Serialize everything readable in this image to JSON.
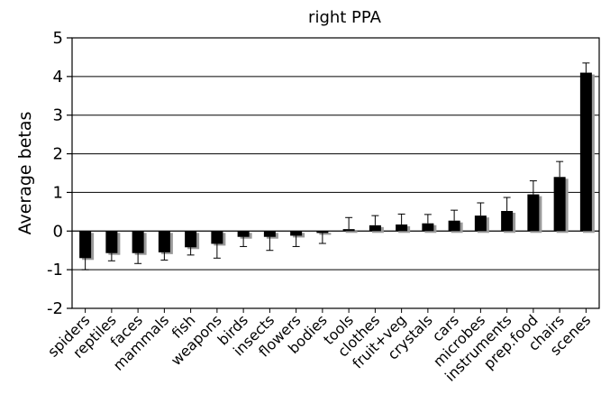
{
  "chart_data": {
    "type": "bar",
    "title": "right PPA",
    "xlabel": "",
    "ylabel": "Average betas",
    "ylim": [
      -2,
      5
    ],
    "yticks": [
      -2,
      -1,
      0,
      1,
      2,
      3,
      4,
      5
    ],
    "grid": true,
    "legend": "none",
    "categories": [
      "spiders",
      "reptiles",
      "faces",
      "mammals",
      "fish",
      "weapons",
      "birds",
      "insects",
      "flowers",
      "bodies",
      "tools",
      "clothes",
      "fruit+veg",
      "crystals",
      "cars",
      "microbes",
      "instruments",
      "prep.food",
      "chairs",
      "scenes"
    ],
    "series": [
      {
        "values": [
          -0.7,
          -0.57,
          -0.57,
          -0.55,
          -0.42,
          -0.33,
          -0.15,
          -0.15,
          -0.12,
          -0.05,
          0.05,
          0.15,
          0.17,
          0.2,
          0.27,
          0.4,
          0.52,
          0.95,
          1.4,
          4.1
        ],
        "errors": [
          0.3,
          0.2,
          0.27,
          0.2,
          0.2,
          0.37,
          0.25,
          0.35,
          0.28,
          0.27,
          0.3,
          0.25,
          0.27,
          0.23,
          0.27,
          0.33,
          0.35,
          0.35,
          0.4,
          0.25
        ]
      }
    ],
    "bar_color": "#000000"
  }
}
